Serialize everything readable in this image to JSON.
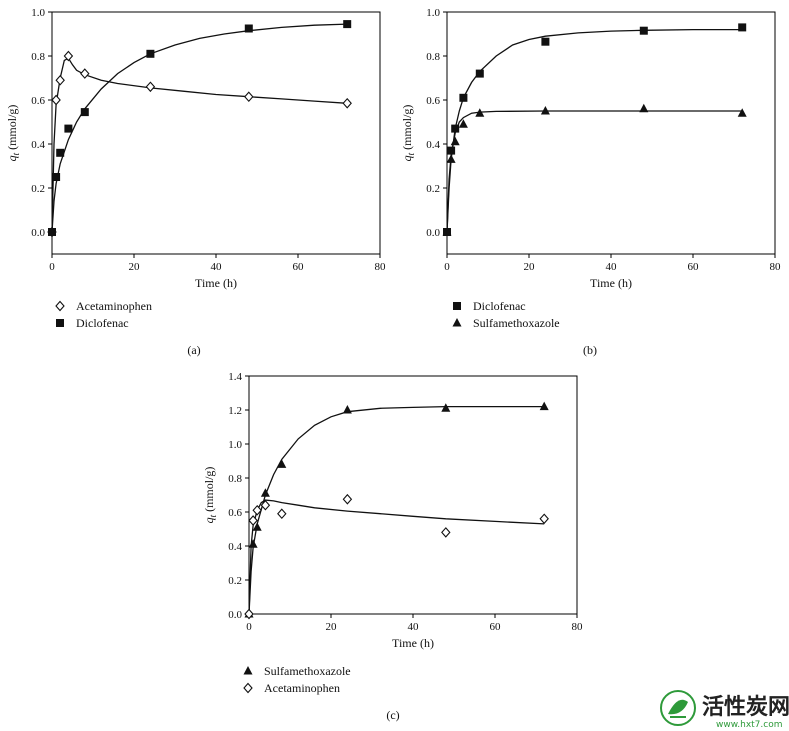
{
  "chart_data": [
    {
      "type": "scatter",
      "panel_label": "(a)",
      "title": "",
      "xlabel": "Time (h)",
      "ylabel": "q_t (mmol/g)",
      "ylabel_main": "q",
      "ylabel_sub": "t",
      "ylabel_unit": " (mmol/g)",
      "xlim": [
        0,
        80
      ],
      "ylim": [
        -0.1,
        1.0
      ],
      "xticks": [
        "0",
        "20",
        "40",
        "60",
        "80"
      ],
      "yticks": [
        "0.0",
        "0.2",
        "0.4",
        "0.6",
        "0.8",
        "1.0"
      ],
      "grid": false,
      "legend_position": "bottom-left",
      "series": [
        {
          "name": "Acetaminophen",
          "marker": "diamond-open",
          "points": [
            [
              0,
              0.0
            ],
            [
              1,
              0.6
            ],
            [
              2,
              0.69
            ],
            [
              4,
              0.8
            ],
            [
              8,
              0.72
            ],
            [
              24,
              0.66
            ],
            [
              48,
              0.615
            ],
            [
              72,
              0.585
            ]
          ],
          "fit": [
            [
              0,
              0.0
            ],
            [
              0.5,
              0.4
            ],
            [
              1,
              0.58
            ],
            [
              2,
              0.7
            ],
            [
              3,
              0.78
            ],
            [
              4,
              0.79
            ],
            [
              5,
              0.76
            ],
            [
              6,
              0.735
            ],
            [
              8,
              0.715
            ],
            [
              12,
              0.69
            ],
            [
              16,
              0.675
            ],
            [
              24,
              0.655
            ],
            [
              32,
              0.64
            ],
            [
              40,
              0.625
            ],
            [
              48,
              0.615
            ],
            [
              56,
              0.605
            ],
            [
              64,
              0.595
            ],
            [
              72,
              0.585
            ]
          ]
        },
        {
          "name": "Diclofenac",
          "marker": "square",
          "points": [
            [
              0,
              0.0
            ],
            [
              1,
              0.25
            ],
            [
              2,
              0.36
            ],
            [
              4,
              0.47
            ],
            [
              8,
              0.545
            ],
            [
              24,
              0.81
            ],
            [
              48,
              0.925
            ],
            [
              72,
              0.945
            ]
          ],
          "fit": [
            [
              0,
              0.0
            ],
            [
              0.5,
              0.14
            ],
            [
              1,
              0.22
            ],
            [
              2,
              0.31
            ],
            [
              4,
              0.42
            ],
            [
              6,
              0.5
            ],
            [
              8,
              0.56
            ],
            [
              12,
              0.65
            ],
            [
              16,
              0.72
            ],
            [
              20,
              0.77
            ],
            [
              24,
              0.81
            ],
            [
              30,
              0.85
            ],
            [
              36,
              0.88
            ],
            [
              42,
              0.9
            ],
            [
              48,
              0.915
            ],
            [
              56,
              0.93
            ],
            [
              64,
              0.94
            ],
            [
              72,
              0.945
            ]
          ]
        }
      ]
    },
    {
      "type": "scatter",
      "panel_label": "(b)",
      "title": "",
      "xlabel": "Time (h)",
      "ylabel": "q_t (mmol/g)",
      "ylabel_main": "q",
      "ylabel_sub": "t",
      "ylabel_unit": " (mmol/g)",
      "xlim": [
        0,
        80
      ],
      "ylim": [
        -0.1,
        1.0
      ],
      "xticks": [
        "0",
        "20",
        "40",
        "60",
        "80"
      ],
      "yticks": [
        "0.0",
        "0.2",
        "0.4",
        "0.6",
        "0.8",
        "1.0"
      ],
      "grid": false,
      "legend_position": "bottom-left",
      "series": [
        {
          "name": "Diclofenac",
          "marker": "square",
          "points": [
            [
              0,
              0.0
            ],
            [
              1,
              0.37
            ],
            [
              2,
              0.47
            ],
            [
              4,
              0.61
            ],
            [
              8,
              0.72
            ],
            [
              24,
              0.865
            ],
            [
              48,
              0.915
            ],
            [
              72,
              0.93
            ]
          ],
          "fit": [
            [
              0,
              0.0
            ],
            [
              0.5,
              0.2
            ],
            [
              1,
              0.33
            ],
            [
              2,
              0.47
            ],
            [
              3,
              0.55
            ],
            [
              4,
              0.61
            ],
            [
              6,
              0.68
            ],
            [
              8,
              0.73
            ],
            [
              12,
              0.8
            ],
            [
              16,
              0.85
            ],
            [
              20,
              0.875
            ],
            [
              24,
              0.89
            ],
            [
              32,
              0.905
            ],
            [
              40,
              0.913
            ],
            [
              48,
              0.917
            ],
            [
              60,
              0.92
            ],
            [
              72,
              0.92
            ]
          ]
        },
        {
          "name": "Sulfamethoxazole",
          "marker": "triangle",
          "points": [
            [
              0,
              0.0
            ],
            [
              1,
              0.33
            ],
            [
              2,
              0.41
            ],
            [
              4,
              0.49
            ],
            [
              8,
              0.54
            ],
            [
              24,
              0.55
            ],
            [
              48,
              0.56
            ],
            [
              72,
              0.54
            ]
          ],
          "fit": [
            [
              0,
              0.0
            ],
            [
              0.5,
              0.24
            ],
            [
              1,
              0.35
            ],
            [
              2,
              0.45
            ],
            [
              3,
              0.5
            ],
            [
              4,
              0.52
            ],
            [
              6,
              0.54
            ],
            [
              8,
              0.545
            ],
            [
              12,
              0.548
            ],
            [
              24,
              0.55
            ],
            [
              48,
              0.55
            ],
            [
              72,
              0.55
            ]
          ]
        }
      ]
    },
    {
      "type": "scatter",
      "panel_label": "(c)",
      "title": "",
      "xlabel": "Time (h)",
      "ylabel": "q_t (mmol/g)",
      "ylabel_main": "q",
      "ylabel_sub": "t",
      "ylabel_unit": " (mmol/g)",
      "xlim": [
        0,
        80
      ],
      "ylim": [
        0.0,
        1.4
      ],
      "xticks": [
        "0",
        "20",
        "40",
        "60",
        "80"
      ],
      "yticks": [
        "0.0",
        "0.2",
        "0.4",
        "0.6",
        "0.8",
        "1.0",
        "1.2",
        "1.4"
      ],
      "grid": false,
      "legend_position": "bottom-left",
      "series": [
        {
          "name": "Sulfamethoxazole",
          "marker": "triangle",
          "points": [
            [
              0,
              0.0
            ],
            [
              1,
              0.41
            ],
            [
              2,
              0.51
            ],
            [
              4,
              0.71
            ],
            [
              8,
              0.88
            ],
            [
              24,
              1.2
            ],
            [
              48,
              1.21
            ],
            [
              72,
              1.22
            ]
          ],
          "fit": [
            [
              0,
              0.0
            ],
            [
              0.5,
              0.25
            ],
            [
              1,
              0.39
            ],
            [
              2,
              0.53
            ],
            [
              4,
              0.7
            ],
            [
              6,
              0.82
            ],
            [
              8,
              0.91
            ],
            [
              12,
              1.03
            ],
            [
              16,
              1.11
            ],
            [
              20,
              1.16
            ],
            [
              24,
              1.19
            ],
            [
              32,
              1.21
            ],
            [
              40,
              1.215
            ],
            [
              48,
              1.22
            ],
            [
              60,
              1.22
            ],
            [
              72,
              1.22
            ]
          ]
        },
        {
          "name": "Acetaminophen",
          "marker": "diamond-open",
          "points": [
            [
              0,
              0.0
            ],
            [
              1,
              0.55
            ],
            [
              2,
              0.61
            ],
            [
              4,
              0.64
            ],
            [
              8,
              0.59
            ],
            [
              24,
              0.675
            ],
            [
              48,
              0.48
            ],
            [
              72,
              0.56
            ]
          ],
          "fit": [
            [
              0,
              0.0
            ],
            [
              0.5,
              0.4
            ],
            [
              1,
              0.52
            ],
            [
              2,
              0.61
            ],
            [
              3,
              0.655
            ],
            [
              4,
              0.67
            ],
            [
              6,
              0.665
            ],
            [
              8,
              0.655
            ],
            [
              12,
              0.64
            ],
            [
              16,
              0.625
            ],
            [
              24,
              0.605
            ],
            [
              32,
              0.59
            ],
            [
              40,
              0.575
            ],
            [
              48,
              0.56
            ],
            [
              60,
              0.545
            ],
            [
              72,
              0.53
            ]
          ]
        }
      ]
    }
  ],
  "watermark": {
    "title": "活性炭网",
    "url": "www.hxt7.com",
    "icon": "leaf-logo-icon",
    "color": "#2e9a3a"
  }
}
